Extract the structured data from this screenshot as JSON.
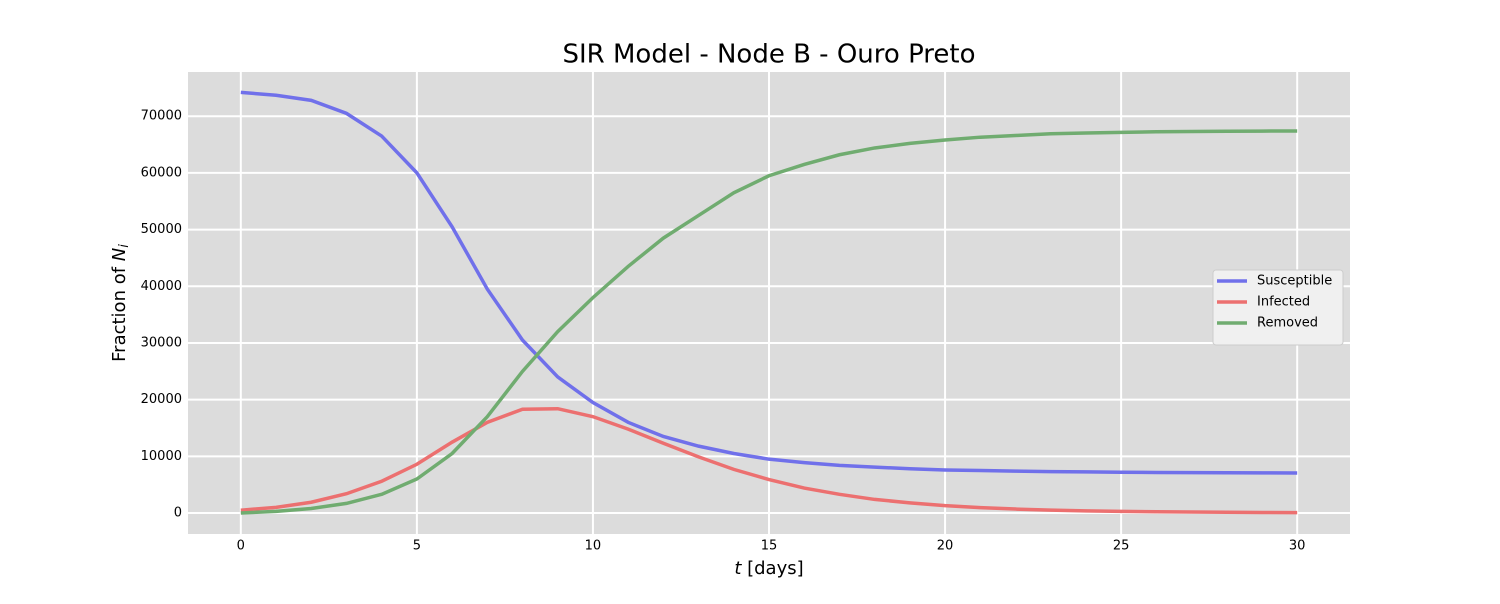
{
  "chart_data": {
    "type": "line",
    "title": "SIR Model - Node B - Ouro Preto",
    "xlabel": [
      "t",
      " [days]"
    ],
    "ylabel": [
      "Fraction of ",
      "N",
      "i"
    ],
    "x": [
      0,
      1,
      2,
      3,
      4,
      5,
      6,
      7,
      8,
      9,
      10,
      11,
      12,
      13,
      14,
      15,
      16,
      17,
      18,
      19,
      20,
      21,
      22,
      23,
      24,
      25,
      26,
      27,
      28,
      29,
      30
    ],
    "series": [
      {
        "name": "Susceptible",
        "color": "#7070ea",
        "values": [
          74200,
          73700,
          72800,
          70500,
          66500,
          60000,
          50500,
          39500,
          30500,
          24000,
          19500,
          16000,
          13500,
          11800,
          10500,
          9500,
          8900,
          8400,
          8100,
          7800,
          7600,
          7500,
          7400,
          7300,
          7250,
          7200,
          7150,
          7120,
          7100,
          7080,
          7050
        ]
      },
      {
        "name": "Infected",
        "color": "#ec7070",
        "values": [
          500,
          1000,
          1900,
          3400,
          5600,
          8600,
          12500,
          16000,
          18300,
          18400,
          17000,
          14800,
          12300,
          9900,
          7700,
          5900,
          4400,
          3300,
          2400,
          1800,
          1300,
          950,
          700,
          520,
          390,
          290,
          220,
          170,
          130,
          100,
          80
        ]
      },
      {
        "name": "Removed",
        "color": "#70ac70",
        "values": [
          0,
          300,
          800,
          1700,
          3300,
          6000,
          10500,
          17000,
          25000,
          32000,
          38000,
          43500,
          48500,
          52500,
          56500,
          59500,
          61500,
          63200,
          64400,
          65200,
          65800,
          66300,
          66600,
          66900,
          67050,
          67150,
          67250,
          67300,
          67350,
          67380,
          67400
        ]
      }
    ],
    "xlim": [
      -1.5,
      31.5
    ],
    "xticks": [
      0,
      5,
      10,
      15,
      20,
      25,
      30
    ],
    "ylim": [
      -3700,
      77800
    ],
    "yticks": [
      0,
      10000,
      20000,
      30000,
      40000,
      50000,
      60000,
      70000
    ],
    "grid": true,
    "legend": "right"
  }
}
